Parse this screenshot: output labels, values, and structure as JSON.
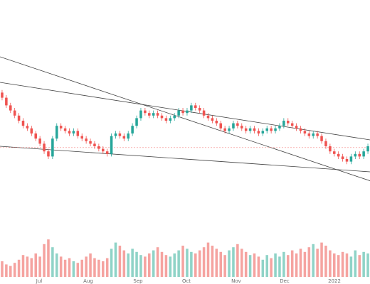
{
  "chart_data": {
    "type": "candlestick",
    "title": "",
    "xlabel": "",
    "ylabel": "",
    "grid": false,
    "x_ticks": [
      "Jul",
      "Aug",
      "Sep",
      "Oct",
      "Nov",
      "Dec",
      "2022"
    ],
    "colors": {
      "up": "#26a69a",
      "down": "#ef5350",
      "up_volume": "#8fd3c7",
      "down_volume": "#f5a3a0",
      "trendline": "#404040",
      "price_line": "#ef5350"
    },
    "price": {
      "ylim": [
        0,
        100
      ],
      "current_price_line": 29,
      "candles": [
        [
          72,
          68,
          74,
          66
        ],
        [
          68,
          62,
          70,
          60
        ],
        [
          62,
          58,
          64,
          56
        ],
        [
          58,
          54,
          60,
          52
        ],
        [
          54,
          50,
          56,
          48
        ],
        [
          50,
          46,
          52,
          44
        ],
        [
          46,
          44,
          48,
          42
        ],
        [
          44,
          40,
          46,
          38
        ],
        [
          40,
          36,
          42,
          34
        ],
        [
          36,
          32,
          38,
          30
        ],
        [
          32,
          26,
          34,
          24
        ],
        [
          26,
          22,
          28,
          20
        ],
        [
          22,
          36,
          38,
          20
        ],
        [
          36,
          46,
          48,
          34
        ],
        [
          46,
          44,
          48,
          42
        ],
        [
          44,
          42,
          46,
          40
        ],
        [
          42,
          40,
          44,
          38
        ],
        [
          40,
          42,
          44,
          38
        ],
        [
          42,
          38,
          44,
          36
        ],
        [
          38,
          36,
          40,
          34
        ],
        [
          36,
          34,
          38,
          32
        ],
        [
          34,
          32,
          36,
          30
        ],
        [
          32,
          30,
          34,
          28
        ],
        [
          30,
          28,
          32,
          26
        ],
        [
          28,
          26,
          30,
          24
        ],
        [
          26,
          24,
          28,
          22
        ],
        [
          24,
          38,
          40,
          22
        ],
        [
          38,
          40,
          42,
          36
        ],
        [
          40,
          38,
          42,
          36
        ],
        [
          38,
          36,
          40,
          34
        ],
        [
          36,
          40,
          42,
          34
        ],
        [
          40,
          46,
          48,
          38
        ],
        [
          46,
          52,
          54,
          44
        ],
        [
          52,
          58,
          60,
          50
        ],
        [
          58,
          56,
          60,
          54
        ],
        [
          56,
          54,
          58,
          52
        ],
        [
          54,
          56,
          58,
          52
        ],
        [
          56,
          54,
          58,
          52
        ],
        [
          54,
          52,
          56,
          50
        ],
        [
          52,
          50,
          54,
          48
        ],
        [
          50,
          52,
          54,
          48
        ],
        [
          52,
          54,
          56,
          50
        ],
        [
          54,
          58,
          60,
          52
        ],
        [
          58,
          56,
          60,
          54
        ],
        [
          56,
          58,
          60,
          54
        ],
        [
          58,
          62,
          64,
          56
        ],
        [
          62,
          60,
          64,
          58
        ],
        [
          60,
          58,
          62,
          56
        ],
        [
          58,
          54,
          60,
          52
        ],
        [
          54,
          52,
          56,
          50
        ],
        [
          52,
          50,
          54,
          48
        ],
        [
          50,
          48,
          52,
          46
        ],
        [
          48,
          44,
          50,
          42
        ],
        [
          44,
          42,
          46,
          40
        ],
        [
          42,
          44,
          46,
          40
        ],
        [
          44,
          48,
          50,
          42
        ],
        [
          48,
          46,
          50,
          44
        ],
        [
          46,
          44,
          48,
          42
        ],
        [
          44,
          42,
          46,
          40
        ],
        [
          42,
          44,
          46,
          40
        ],
        [
          44,
          42,
          46,
          40
        ],
        [
          42,
          40,
          44,
          38
        ],
        [
          40,
          42,
          44,
          38
        ],
        [
          42,
          44,
          46,
          40
        ],
        [
          44,
          42,
          46,
          40
        ],
        [
          42,
          44,
          46,
          40
        ],
        [
          44,
          46,
          48,
          42
        ],
        [
          46,
          50,
          52,
          44
        ],
        [
          50,
          48,
          52,
          46
        ],
        [
          48,
          46,
          50,
          44
        ],
        [
          46,
          44,
          48,
          42
        ],
        [
          44,
          42,
          46,
          40
        ],
        [
          42,
          40,
          44,
          38
        ],
        [
          40,
          38,
          42,
          36
        ],
        [
          38,
          40,
          42,
          36
        ],
        [
          40,
          38,
          42,
          36
        ],
        [
          38,
          34,
          40,
          32
        ],
        [
          34,
          30,
          36,
          28
        ],
        [
          30,
          26,
          32,
          24
        ],
        [
          26,
          24,
          28,
          22
        ],
        [
          24,
          22,
          26,
          20
        ],
        [
          22,
          20,
          24,
          18
        ],
        [
          20,
          18,
          22,
          16
        ],
        [
          18,
          22,
          24,
          16
        ],
        [
          22,
          24,
          26,
          20
        ],
        [
          24,
          22,
          26,
          20
        ],
        [
          22,
          26,
          28,
          20
        ],
        [
          26,
          30,
          32,
          24
        ]
      ]
    },
    "volume": {
      "values": [
        20,
        16,
        14,
        18,
        22,
        28,
        26,
        24,
        30,
        26,
        42,
        48,
        38,
        30,
        26,
        22,
        24,
        20,
        18,
        22,
        26,
        30,
        24,
        22,
        20,
        24,
        36,
        44,
        40,
        34,
        30,
        36,
        32,
        28,
        26,
        30,
        34,
        38,
        32,
        28,
        26,
        30,
        34,
        40,
        36,
        32,
        30,
        34,
        38,
        44,
        40,
        36,
        32,
        28,
        34,
        38,
        42,
        36,
        32,
        28,
        30,
        26,
        22,
        28,
        24,
        30,
        26,
        32,
        28,
        34,
        30,
        36,
        32,
        38,
        42,
        36,
        44,
        40,
        34,
        30,
        28,
        32,
        30,
        26,
        34,
        28,
        32,
        30
      ],
      "ylim": [
        0,
        100
      ]
    },
    "trendlines": [
      {
        "from": [
          0,
          100
        ],
        "to": [
          1,
          3
        ]
      },
      {
        "from": [
          0,
          80
        ],
        "to": [
          1,
          35
        ]
      },
      {
        "from": [
          0,
          30
        ],
        "to": [
          1,
          10
        ]
      }
    ]
  }
}
